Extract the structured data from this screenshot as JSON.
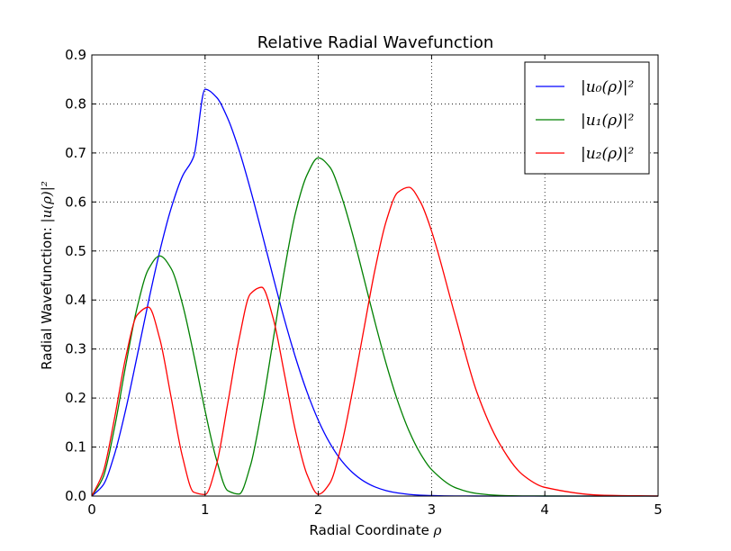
{
  "chart_data": {
    "type": "line",
    "title": "Relative Radial Wavefunction",
    "xlabel": {
      "text": "Radial Coordinate ",
      "symbol": "ρ"
    },
    "ylabel": {
      "text": "Radial Wavefunction: ",
      "symbol": "|u(ρ)|²"
    },
    "xlim": [
      0,
      5
    ],
    "ylim": [
      0,
      0.9
    ],
    "xticks": [
      0,
      1,
      2,
      3,
      4,
      5
    ],
    "xtick_labels": [
      "0",
      "1",
      "2",
      "3",
      "4",
      "5"
    ],
    "yticks": [
      0.0,
      0.1,
      0.2,
      0.3,
      0.4,
      0.5,
      0.6,
      0.7,
      0.8,
      0.9
    ],
    "ytick_labels": [
      "0.0",
      "0.1",
      "0.2",
      "0.3",
      "0.4",
      "0.5",
      "0.6",
      "0.7",
      "0.8",
      "0.9"
    ],
    "grid": true,
    "legend_position": "top-right",
    "series": [
      {
        "name": "|u₀(ρ)|²",
        "color": "#0000ff",
        "x": [
          0,
          0.1,
          0.2,
          0.3,
          0.4,
          0.5,
          0.6,
          0.7,
          0.8,
          0.9,
          1.0,
          1.1,
          1.2,
          1.3,
          1.4,
          1.5,
          1.6,
          1.7,
          1.8,
          1.9,
          2.0,
          2.1,
          2.2,
          2.3,
          2.4,
          2.5,
          2.6,
          2.7,
          2.8,
          2.9,
          3.0,
          3.2,
          3.4,
          3.6,
          3.8,
          4.0,
          4.5,
          5.0
        ],
        "y": [
          0,
          0.0224,
          0.0849,
          0.1771,
          0.2855,
          0.3967,
          0.4996,
          0.5869,
          0.6524,
          0.6929,
          0.83,
          0.8139,
          0.7705,
          0.7058,
          0.626,
          0.5382,
          0.448,
          0.3609,
          0.2817,
          0.2125,
          0.1546,
          0.1087,
          0.0737,
          0.0484,
          0.0306,
          0.0187,
          0.0111,
          0.0064,
          0.0035,
          0.0019,
          0.001,
          0.0003,
          0.0001,
          0,
          0,
          0,
          0,
          0
        ]
      },
      {
        "name": "|u₁(ρ)|²",
        "color": "#008000",
        "x": [
          0,
          0.1,
          0.2,
          0.3,
          0.4,
          0.5,
          0.6,
          0.7,
          0.8,
          0.9,
          1.0,
          1.1,
          1.2,
          1.3,
          1.4,
          1.5,
          1.6,
          1.7,
          1.8,
          1.9,
          2.0,
          2.1,
          2.2,
          2.3,
          2.4,
          2.5,
          2.6,
          2.7,
          2.8,
          2.9,
          3.0,
          3.2,
          3.4,
          3.6,
          3.8,
          4.0,
          4.5,
          5.0
        ],
        "y": [
          0,
          0.0385,
          0.1392,
          0.2673,
          0.3846,
          0.4629,
          0.49,
          0.4644,
          0.3921,
          0.2885,
          0.1743,
          0.0748,
          0.0111,
          0.0041,
          0.0618,
          0.1758,
          0.317,
          0.4599,
          0.5796,
          0.6552,
          0.69,
          0.6716,
          0.6148,
          0.5364,
          0.4466,
          0.355,
          0.2692,
          0.1943,
          0.1334,
          0.0871,
          0.054,
          0.0182,
          0.0053,
          0.0014,
          0.0003,
          0.0001,
          0,
          0
        ]
      },
      {
        "name": "|u₂(ρ)|²",
        "color": "#ff0000",
        "x": [
          0,
          0.1,
          0.2,
          0.3,
          0.4,
          0.5,
          0.6,
          0.7,
          0.8,
          0.9,
          1.0,
          1.1,
          1.2,
          1.3,
          1.4,
          1.5,
          1.6,
          1.7,
          1.8,
          1.9,
          2.0,
          2.1,
          2.2,
          2.3,
          2.4,
          2.5,
          2.6,
          2.7,
          2.8,
          2.9,
          3.0,
          3.2,
          3.4,
          3.6,
          3.8,
          4.0,
          4.5,
          5.0
        ],
        "y": [
          0,
          0.0488,
          0.1584,
          0.284,
          0.3693,
          0.3854,
          0.3208,
          0.2018,
          0.0808,
          0.0079,
          0.0031,
          0.0635,
          0.1888,
          0.3198,
          0.4124,
          0.426,
          0.3638,
          0.2499,
          0.1311,
          0.0441,
          0.0036,
          0.0257,
          0.1,
          0.2121,
          0.3375,
          0.4616,
          0.5613,
          0.6192,
          0.63,
          0.6006,
          0.5406,
          0.3747,
          0.2119,
          0.1071,
          0.0444,
          0.0178,
          0.0018,
          0.0001
        ]
      }
    ]
  }
}
